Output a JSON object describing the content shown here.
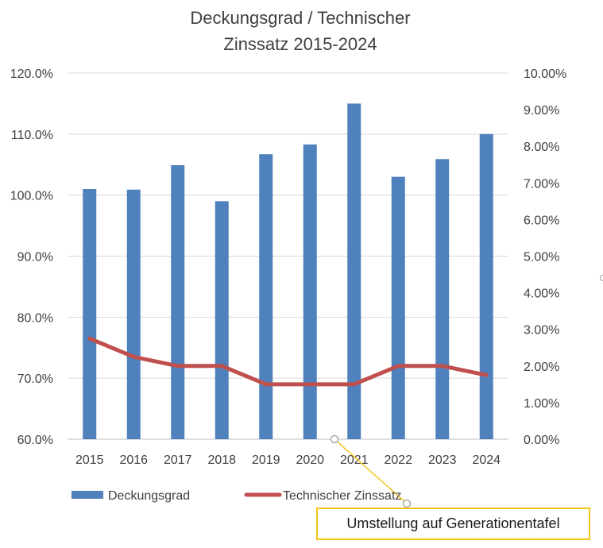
{
  "chart_data": {
    "type": "bar",
    "title_lines": [
      "Deckungsgrad / Technischer",
      "Zinssatz 2015-2024"
    ],
    "categories": [
      "2015",
      "2016",
      "2017",
      "2018",
      "2019",
      "2020",
      "2021",
      "2022",
      "2023",
      "2024"
    ],
    "series": [
      {
        "name": "Deckungsgrad",
        "kind": "bar",
        "axis": "left",
        "color": "#4f81bd",
        "values": [
          101.0,
          100.9,
          104.9,
          99.0,
          106.7,
          108.3,
          115.0,
          103.0,
          105.9,
          110.0
        ]
      },
      {
        "name": "Technischer Zinssatz",
        "kind": "line",
        "axis": "right",
        "color": "#c0504d",
        "values": [
          2.75,
          2.25,
          2.0,
          2.0,
          1.5,
          1.5,
          1.5,
          2.0,
          2.0,
          1.75
        ]
      }
    ],
    "left_axis": {
      "min": 60,
      "max": 120,
      "step": 10,
      "tick_labels": [
        "60.0%",
        "70.0%",
        "80.0%",
        "90.0%",
        "100.0%",
        "110.0%",
        "120.0%"
      ]
    },
    "right_axis": {
      "min": 0,
      "max": 10,
      "step": 1,
      "tick_labels": [
        "0.00%",
        "1.00%",
        "2.00%",
        "3.00%",
        "4.00%",
        "5.00%",
        "6.00%",
        "7.00%",
        "8.00%",
        "9.00%",
        "10.00%"
      ]
    },
    "gridlines": true,
    "legend_position": "bottom",
    "annotation": {
      "text": "Umstellung auf Generationentafel",
      "target_category": "2021",
      "target_value": 0
    }
  }
}
